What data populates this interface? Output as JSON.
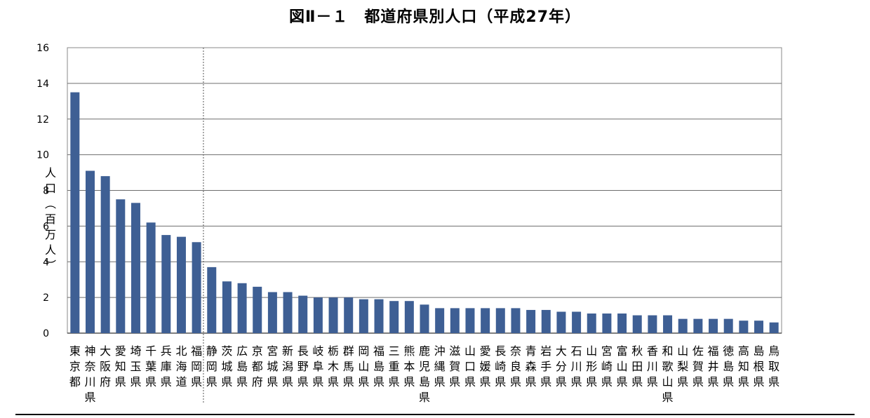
{
  "chart_data": {
    "type": "bar",
    "title": "図Ⅱ－１　都道府県別人口（平成27年）",
    "ylabel": "人口（百万人）",
    "xlabel": "",
    "ylim": [
      0,
      16
    ],
    "yticks": [
      0,
      2,
      4,
      6,
      8,
      10,
      12,
      14,
      16
    ],
    "grid": true,
    "bar_color": "#3e5f94",
    "categories": [
      "東京都",
      "神奈川県",
      "大阪府",
      "愛知県",
      "埼玉県",
      "千葉県",
      "兵庫県",
      "北海道",
      "福岡県",
      "静岡県",
      "茨城県",
      "広島県",
      "京都府",
      "宮城県",
      "新潟県",
      "長野県",
      "岐阜県",
      "栃木県",
      "群馬県",
      "岡山県",
      "福島県",
      "三重県",
      "熊本県",
      "鹿児島県",
      "沖縄県",
      "滋賀県",
      "山口県",
      "愛媛県",
      "長崎県",
      "奈良県",
      "青森県",
      "岩手県",
      "大分県",
      "石川県",
      "山形県",
      "宮崎県",
      "富山県",
      "秋田県",
      "香川県",
      "和歌山県",
      "山梨県",
      "佐賀県",
      "福井県",
      "徳島県",
      "高知県",
      "島根県",
      "鳥取県"
    ],
    "values": [
      13.5,
      9.1,
      8.8,
      7.5,
      7.3,
      6.2,
      5.5,
      5.4,
      5.1,
      3.7,
      2.9,
      2.8,
      2.6,
      2.3,
      2.3,
      2.1,
      2.0,
      2.0,
      2.0,
      1.9,
      1.9,
      1.8,
      1.8,
      1.6,
      1.4,
      1.4,
      1.4,
      1.4,
      1.4,
      1.4,
      1.3,
      1.3,
      1.2,
      1.2,
      1.1,
      1.1,
      1.1,
      1.0,
      1.0,
      1.0,
      0.8,
      0.8,
      0.8,
      0.8,
      0.7,
      0.7,
      0.6
    ],
    "divider_after_index": 8
  }
}
